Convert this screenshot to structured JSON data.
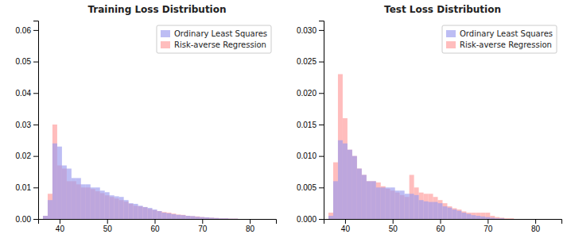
{
  "chart_data": [
    {
      "type": "bar",
      "title": "Training Loss Distribution",
      "x": [
        36,
        37,
        38,
        39,
        40,
        41,
        42,
        43,
        44,
        45,
        46,
        47,
        48,
        49,
        50,
        51,
        52,
        53,
        54,
        55,
        56,
        57,
        58,
        59,
        60,
        61,
        62,
        63,
        64,
        65,
        66,
        67,
        68,
        69,
        70,
        71,
        72,
        73,
        74,
        75,
        76,
        77,
        78,
        79,
        80,
        81,
        82,
        83,
        84,
        85
      ],
      "series": [
        {
          "name": "Ordinary Least Squares",
          "color": "#9999ee",
          "values": [
            0.0,
            0.001,
            0.006,
            0.024,
            0.023,
            0.017,
            0.016,
            0.013,
            0.013,
            0.011,
            0.011,
            0.01,
            0.01,
            0.009,
            0.0085,
            0.0075,
            0.0072,
            0.007,
            0.006,
            0.005,
            0.0048,
            0.0042,
            0.0038,
            0.0035,
            0.003,
            0.0025,
            0.002,
            0.0018,
            0.0015,
            0.0013,
            0.0012,
            0.001,
            0.0009,
            0.0007,
            0.0006,
            0.0005,
            0.0004,
            0.0003,
            0.0002,
            0.0002,
            0.0001,
            0.0001,
            0.0,
            0.0,
            0.0,
            0.0,
            0.0,
            0.0,
            0.0,
            0.0
          ]
        },
        {
          "name": "Risk-averse Regression",
          "color": "#ff9999",
          "values": [
            0.0,
            0.001,
            0.008,
            0.03,
            0.017,
            0.016,
            0.012,
            0.012,
            0.011,
            0.01,
            0.01,
            0.0095,
            0.0088,
            0.0082,
            0.0075,
            0.007,
            0.0065,
            0.006,
            0.0055,
            0.0048,
            0.0042,
            0.004,
            0.0037,
            0.0032,
            0.0028,
            0.0025,
            0.0022,
            0.002,
            0.0017,
            0.0014,
            0.0013,
            0.001,
            0.0009,
            0.0008,
            0.0006,
            0.0005,
            0.0004,
            0.0003,
            0.0002,
            0.0002,
            0.0001,
            0.0001,
            0.0,
            0.0,
            0.0,
            0.0,
            0.0,
            0.0,
            0.0,
            0.0
          ]
        }
      ],
      "xlim": [
        35.5,
        85.5
      ],
      "xticks": [
        40,
        50,
        60,
        70,
        80
      ],
      "ylim": [
        0,
        0.063
      ],
      "yticks": [
        {
          "value": 0,
          "label": "0.00"
        },
        0.01,
        0.02,
        0.03,
        0.04,
        0.05,
        0.06
      ],
      "legend": "upper right",
      "grid": false
    },
    {
      "type": "bar",
      "title": "Test Loss Distribution",
      "x": [
        36,
        37,
        38,
        39,
        40,
        41,
        42,
        43,
        44,
        45,
        46,
        47,
        48,
        49,
        50,
        51,
        52,
        53,
        54,
        55,
        56,
        57,
        58,
        59,
        60,
        61,
        62,
        63,
        64,
        65,
        66,
        67,
        68,
        69,
        70,
        71,
        72,
        73,
        74,
        75,
        76,
        77,
        78,
        79,
        80,
        81,
        82,
        83,
        84,
        85
      ],
      "series": [
        {
          "name": "Ordinary Least Squares",
          "color": "#9999ee",
          "values": [
            0.0,
            0.0005,
            0.006,
            0.0125,
            0.012,
            0.011,
            0.01,
            0.008,
            0.007,
            0.006,
            0.006,
            0.005,
            0.005,
            0.005,
            0.005,
            0.0045,
            0.0045,
            0.004,
            0.004,
            0.0038,
            0.003,
            0.0028,
            0.0027,
            0.0027,
            0.0025,
            0.002,
            0.0018,
            0.0015,
            0.0013,
            0.001,
            0.0008,
            0.0006,
            0.0005,
            0.0004,
            0.0003,
            0.0002,
            0.0001,
            0.0001,
            0.0,
            0.0,
            0.0,
            0.0,
            0.0,
            0.0,
            0.0,
            0.0,
            0.0,
            0.0,
            0.0,
            0.0
          ]
        },
        {
          "name": "Risk-averse Regression",
          "color": "#ff9999",
          "values": [
            0.0,
            0.001,
            0.009,
            0.023,
            0.016,
            0.011,
            0.01,
            0.008,
            0.007,
            0.006,
            0.006,
            0.0058,
            0.0052,
            0.0048,
            0.0045,
            0.0042,
            0.0038,
            0.0035,
            0.007,
            0.005,
            0.0042,
            0.004,
            0.004,
            0.0035,
            0.003,
            0.0025,
            0.002,
            0.0017,
            0.0015,
            0.0012,
            0.001,
            0.001,
            0.001,
            0.001,
            0.001,
            0.0005,
            0.0003,
            0.0002,
            0.0001,
            0.0001,
            0.0,
            0.0,
            0.0,
            0.0,
            0.0,
            0.0,
            0.0,
            0.0,
            0.0,
            0.0
          ]
        }
      ],
      "xlim": [
        35.5,
        85.5
      ],
      "xticks": [
        40,
        50,
        60,
        70,
        80
      ],
      "ylim": [
        0,
        0.0315
      ],
      "yticks": [
        {
          "value": 0,
          "label": "0.000"
        },
        0.005,
        {
          "value": 0.01,
          "label": "0.010"
        },
        0.015,
        {
          "value": 0.02,
          "label": "0.020"
        },
        0.025,
        {
          "value": 0.03,
          "label": "0.030"
        }
      ],
      "legend": "upper right",
      "grid": false
    }
  ]
}
